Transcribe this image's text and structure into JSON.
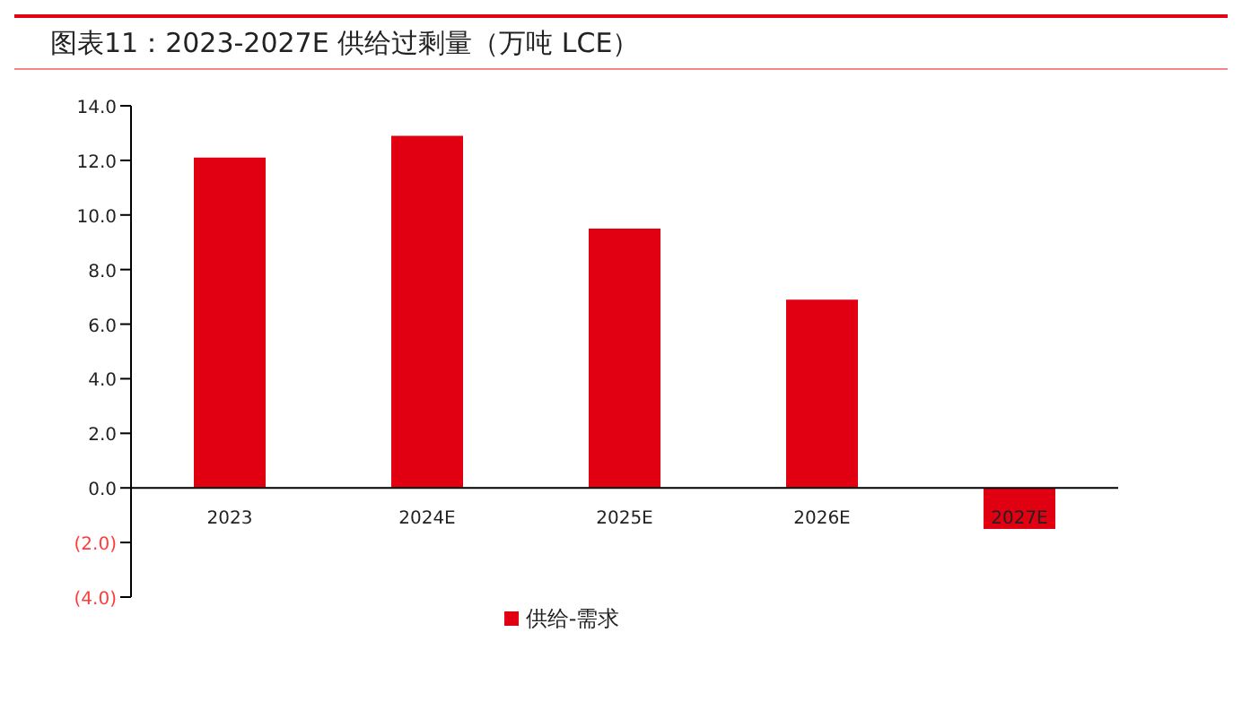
{
  "chart_data": {
    "type": "bar",
    "title": "图表11：2023-2027E 供给过剩量（万吨 LCE）",
    "categories": [
      "2023",
      "2024E",
      "2025E",
      "2026E",
      "2027E"
    ],
    "series": [
      {
        "name": "供给-需求",
        "color": "#e00012",
        "values": [
          12.1,
          12.9,
          9.5,
          6.9,
          -1.5
        ]
      }
    ],
    "ylim": [
      -4,
      14
    ],
    "yticks": [
      {
        "value": -4,
        "label": "(4.0)"
      },
      {
        "value": -2,
        "label": "(2.0)"
      },
      {
        "value": 0,
        "label": "0.0"
      },
      {
        "value": 2,
        "label": "2.0"
      },
      {
        "value": 4,
        "label": "4.0"
      },
      {
        "value": 6,
        "label": "6.0"
      },
      {
        "value": 8,
        "label": "8.0"
      },
      {
        "value": 10,
        "label": "10.0"
      },
      {
        "value": 12,
        "label": "12.0"
      },
      {
        "value": 14,
        "label": "14.0"
      }
    ],
    "legend": "bottom",
    "grid": false
  }
}
